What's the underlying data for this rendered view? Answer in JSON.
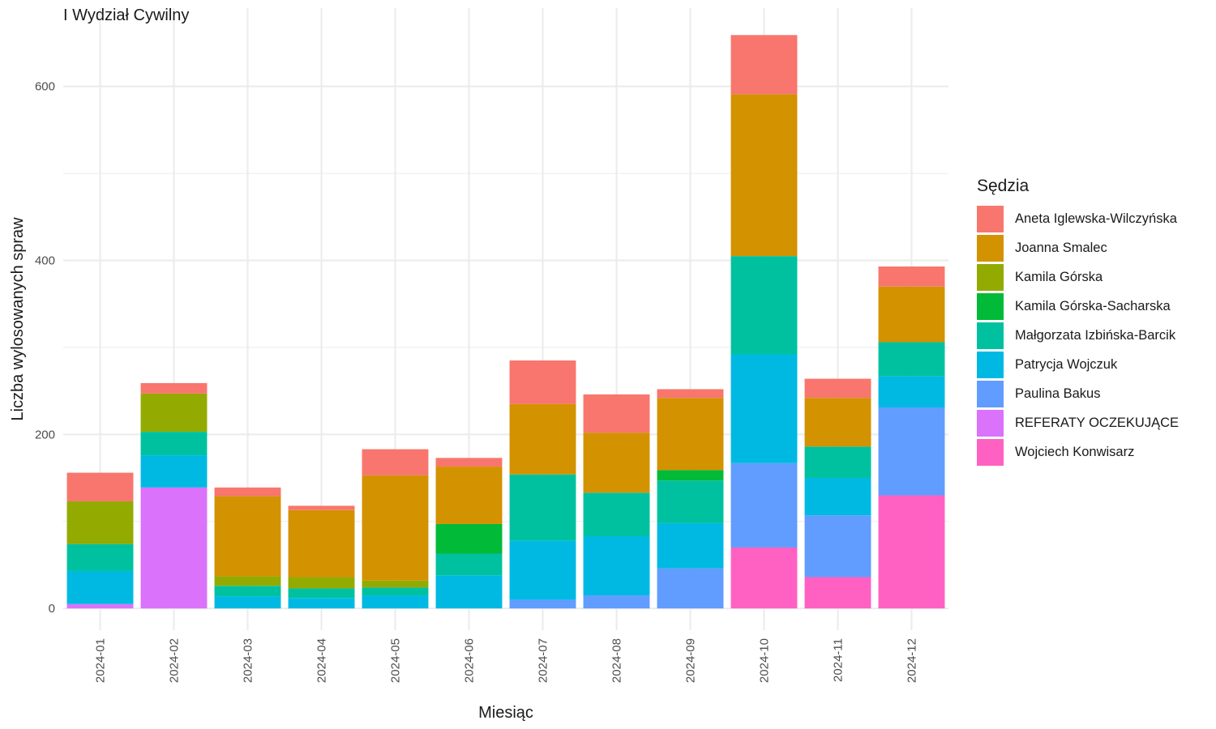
{
  "chart_data": {
    "type": "bar",
    "stacked": true,
    "title": "I Wydział Cywilny",
    "xlabel": "Miesiąc",
    "ylabel": "Liczba wylosowanych spraw",
    "categories": [
      "2024-01",
      "2024-02",
      "2024-03",
      "2024-04",
      "2024-05",
      "2024-06",
      "2024-07",
      "2024-08",
      "2024-09",
      "2024-10",
      "2024-11",
      "2024-12"
    ],
    "ylim": [
      -25,
      690
    ],
    "yticks": [
      0,
      200,
      400,
      600
    ],
    "grid": true,
    "legend_title": "Sędzia",
    "legend_position": "right",
    "series": [
      {
        "name": "Aneta Iglewska-Wilczyńska",
        "color": "#F8766D",
        "values": [
          33,
          12,
          10,
          5,
          30,
          10,
          50,
          44,
          10,
          68,
          22,
          23
        ]
      },
      {
        "name": "Joanna Smalec",
        "color": "#D39200",
        "values": [
          0,
          0,
          92,
          77,
          121,
          66,
          81,
          69,
          83,
          186,
          56,
          64
        ]
      },
      {
        "name": "Kamila Górska",
        "color": "#93AA00",
        "values": [
          49,
          44,
          11,
          13,
          8,
          0,
          0,
          0,
          0,
          0,
          0,
          0
        ]
      },
      {
        "name": "Kamila Górska-Sacharska",
        "color": "#00BA38",
        "values": [
          0,
          0,
          0,
          0,
          0,
          34,
          0,
          0,
          12,
          0,
          0,
          0
        ]
      },
      {
        "name": "Małgorzata Izbińska-Barcik",
        "color": "#00C19F",
        "values": [
          31,
          27,
          12,
          11,
          9,
          25,
          76,
          50,
          49,
          113,
          36,
          39
        ]
      },
      {
        "name": "Patrycja Wojczuk",
        "color": "#00B9E3",
        "values": [
          38,
          37,
          14,
          12,
          15,
          38,
          68,
          68,
          52,
          125,
          43,
          36
        ]
      },
      {
        "name": "Paulina Bakus",
        "color": "#619CFF",
        "values": [
          0,
          0,
          0,
          0,
          0,
          0,
          10,
          15,
          46,
          97,
          71,
          101
        ]
      },
      {
        "name": "REFERATY OCZEKUJĄCE",
        "color": "#DB72FB",
        "values": [
          5,
          139,
          0,
          0,
          0,
          0,
          0,
          0,
          0,
          0,
          0,
          0
        ]
      },
      {
        "name": "Wojciech Konwisarz",
        "color": "#FF61C3",
        "values": [
          0,
          0,
          0,
          0,
          0,
          0,
          0,
          0,
          0,
          70,
          36,
          130
        ]
      }
    ]
  }
}
